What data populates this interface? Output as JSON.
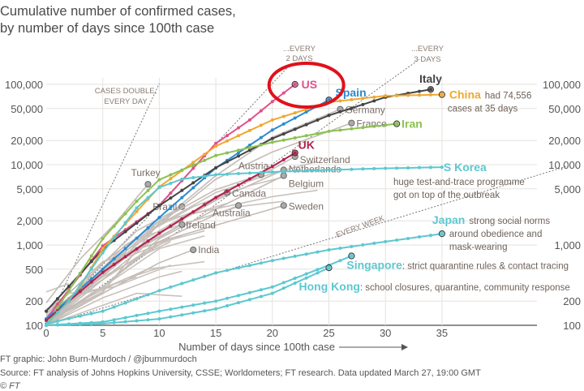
{
  "title_line1": "Cumulative number of confirmed cases,",
  "title_line2": "by number of days since 100th case",
  "footer": {
    "credit": "FT graphic: John Burn-Murdoch / @jburnmurdoch",
    "source": "Source: FT analysis of Johns Hopkins University, CSSE; Worldometers; FT research. Data updated March 27, 19:00 GMT",
    "copyright": "© FT"
  },
  "chart_data": {
    "type": "line",
    "title": "Cumulative number of confirmed cases, by number of days since 100th case",
    "xlabel": "Number of days since 100th case",
    "ylabel": "",
    "xlim": [
      0,
      35
    ],
    "ylim": [
      100,
      100000
    ],
    "yscale": "log",
    "grid": true,
    "x_ticks": [
      0,
      5,
      10,
      15,
      20,
      25,
      30,
      35
    ],
    "y_ticks": [
      100,
      200,
      500,
      1000,
      2000,
      5000,
      10000,
      20000,
      50000,
      100000
    ],
    "y_tick_labels": [
      "100",
      "200",
      "500",
      "1,000",
      "2,000",
      "5,000",
      "10,000",
      "20,000",
      "50,000",
      "100,000"
    ],
    "highlight_circle_on": "US",
    "reference_lines": [
      {
        "label_line1": "CASES DOUBLE,",
        "label_line2": "EVERY DAY",
        "doubling_days": 1,
        "end_day": 10
      },
      {
        "label_line1": "...EVERY",
        "label_line2": "2 DAYS",
        "doubling_days": 2,
        "end_day": 21.5
      },
      {
        "label_line1": "...EVERY",
        "label_line2": "3 DAYS",
        "doubling_days": 3,
        "end_day": 33
      },
      {
        "label_line1": "EVERY WEEK",
        "label_line2": "",
        "doubling_days": 7,
        "end_day": 46
      }
    ],
    "series": [
      {
        "name": "US",
        "color": "#e0508a",
        "bold": true,
        "highlight": true,
        "points": [
          [
            0,
            120
          ],
          [
            5,
            975
          ],
          [
            10,
            3100
          ],
          [
            15,
            18400
          ],
          [
            18,
            36000
          ],
          [
            20,
            61000
          ],
          [
            22,
            100000
          ]
        ]
      },
      {
        "name": "Spain",
        "color": "#2a8bd0",
        "bold": true,
        "highlight": true,
        "points": [
          [
            0,
            120
          ],
          [
            5,
            500
          ],
          [
            10,
            2200
          ],
          [
            15,
            9100
          ],
          [
            20,
            27000
          ],
          [
            25,
            64000
          ]
        ]
      },
      {
        "name": "Italy",
        "color": "#444444",
        "bold": true,
        "highlight": true,
        "points": [
          [
            0,
            150
          ],
          [
            5,
            888
          ],
          [
            10,
            3089
          ],
          [
            15,
            9172
          ],
          [
            20,
            21157
          ],
          [
            25,
            41035
          ],
          [
            30,
            69176
          ],
          [
            34,
            86498
          ]
        ]
      },
      {
        "name": "China",
        "color": "#f0a830",
        "bold": true,
        "highlight": true,
        "note": "had 74,556",
        "note2": "cases at 35 days",
        "points": [
          [
            0,
            100
          ],
          [
            3,
            300
          ],
          [
            5,
            900
          ],
          [
            10,
            5300
          ],
          [
            15,
            17000
          ],
          [
            20,
            36000
          ],
          [
            25,
            60000
          ],
          [
            30,
            72000
          ],
          [
            35,
            74556
          ]
        ]
      },
      {
        "name": "Iran",
        "color": "#8cc152",
        "bold": true,
        "highlight": true,
        "points": [
          [
            0,
            100
          ],
          [
            5,
            1200
          ],
          [
            8,
            3500
          ],
          [
            10,
            6500
          ],
          [
            15,
            13000
          ],
          [
            20,
            19000
          ],
          [
            25,
            26000
          ],
          [
            31,
            32300
          ]
        ]
      },
      {
        "name": "UK",
        "color": "#b3204f",
        "bold": true,
        "highlight": true,
        "points": [
          [
            0,
            115
          ],
          [
            5,
            456
          ],
          [
            10,
            1400
          ],
          [
            15,
            3900
          ],
          [
            20,
            9500
          ],
          [
            22,
            14000
          ]
        ]
      },
      {
        "name": "S Korea",
        "color": "#5cc8d0",
        "bold": true,
        "highlight": true,
        "note": "huge test-and-trace programme",
        "note2": "got on top of the outbreak",
        "points": [
          [
            0,
            104
          ],
          [
            2,
            200
          ],
          [
            5,
            800
          ],
          [
            8,
            2900
          ],
          [
            10,
            5200
          ],
          [
            12,
            6600
          ],
          [
            15,
            7500
          ],
          [
            20,
            8100
          ],
          [
            25,
            8600
          ],
          [
            30,
            9000
          ],
          [
            35,
            9300
          ]
        ]
      },
      {
        "name": "Japan",
        "color": "#5cc8d0",
        "bold": true,
        "highlight": true,
        "note": "strong social norms",
        "note2": "around obedience and",
        "note3": "mask-wearing",
        "points": [
          [
            0,
            105
          ],
          [
            5,
            150
          ],
          [
            10,
            270
          ],
          [
            15,
            450
          ],
          [
            20,
            640
          ],
          [
            25,
            870
          ],
          [
            30,
            1100
          ],
          [
            35,
            1380
          ]
        ]
      },
      {
        "name": "Singapore",
        "color": "#5cc8d0",
        "bold": true,
        "highlight": true,
        "note": ": strict quarantine rules & contact tracing",
        "points": [
          [
            0,
            100
          ],
          [
            5,
            110
          ],
          [
            10,
            150
          ],
          [
            15,
            200
          ],
          [
            20,
            300
          ],
          [
            25,
            560
          ],
          [
            27,
            730
          ]
        ]
      },
      {
        "name": "Hong Kong",
        "color": "#5cc8d0",
        "bold": true,
        "highlight": true,
        "note": ": school closures, quarantine, community response",
        "points": [
          [
            0,
            100
          ],
          [
            5,
            105
          ],
          [
            10,
            120
          ],
          [
            15,
            160
          ],
          [
            20,
            250
          ],
          [
            25,
            520
          ]
        ]
      },
      {
        "name": "Germany",
        "color": "#c4bcb6",
        "points": [
          [
            0,
            117
          ],
          [
            5,
            260
          ],
          [
            10,
            1900
          ],
          [
            15,
            7300
          ],
          [
            20,
            22000
          ],
          [
            26,
            49000
          ]
        ]
      },
      {
        "name": "France",
        "color": "#c4bcb6",
        "points": [
          [
            0,
            100
          ],
          [
            5,
            420
          ],
          [
            10,
            1800
          ],
          [
            15,
            6600
          ],
          [
            20,
            14400
          ],
          [
            27,
            33000
          ]
        ]
      },
      {
        "name": "Switzerland",
        "color": "#c4bcb6",
        "points": [
          [
            0,
            100
          ],
          [
            5,
            370
          ],
          [
            10,
            1360
          ],
          [
            15,
            4000
          ],
          [
            20,
            8800
          ],
          [
            22,
            12600
          ]
        ]
      },
      {
        "name": "Netherlands",
        "color": "#c4bcb6",
        "points": [
          [
            0,
            128
          ],
          [
            5,
            500
          ],
          [
            10,
            1400
          ],
          [
            15,
            3600
          ],
          [
            21,
            8600
          ]
        ]
      },
      {
        "name": "Belgium",
        "color": "#c4bcb6",
        "points": [
          [
            0,
            109
          ],
          [
            5,
            300
          ],
          [
            10,
            1200
          ],
          [
            15,
            2800
          ],
          [
            21,
            7300
          ]
        ]
      },
      {
        "name": "Sweden",
        "color": "#c4bcb6",
        "points": [
          [
            0,
            137
          ],
          [
            5,
            620
          ],
          [
            10,
            1100
          ],
          [
            15,
            1760
          ],
          [
            21,
            3100
          ]
        ]
      },
      {
        "name": "Turkey",
        "color": "#c4bcb6",
        "points": [
          [
            0,
            190
          ],
          [
            3,
            670
          ],
          [
            6,
            1800
          ],
          [
            9,
            5700
          ]
        ]
      },
      {
        "name": "Brazil",
        "color": "#c4bcb6",
        "points": [
          [
            0,
            151
          ],
          [
            4,
            430
          ],
          [
            8,
            1500
          ],
          [
            12,
            3000
          ]
        ]
      },
      {
        "name": "Canada",
        "color": "#c4bcb6",
        "points": [
          [
            0,
            110
          ],
          [
            5,
            440
          ],
          [
            10,
            1400
          ],
          [
            16,
            4500
          ]
        ]
      },
      {
        "name": "Austria",
        "color": "#c4bcb6",
        "points": [
          [
            0,
            100
          ],
          [
            5,
            600
          ],
          [
            10,
            2000
          ],
          [
            15,
            4900
          ],
          [
            19,
            7500
          ]
        ]
      },
      {
        "name": "Australia",
        "color": "#c4bcb6",
        "points": [
          [
            0,
            100
          ],
          [
            5,
            300
          ],
          [
            10,
            1100
          ],
          [
            15,
            2400
          ],
          [
            17,
            3100
          ]
        ]
      },
      {
        "name": "Ireland",
        "color": "#c4bcb6",
        "points": [
          [
            0,
            129
          ],
          [
            4,
            360
          ],
          [
            8,
            900
          ],
          [
            12,
            1800
          ]
        ]
      },
      {
        "name": "India",
        "color": "#c4bcb6",
        "points": [
          [
            0,
            110
          ],
          [
            5,
            250
          ],
          [
            10,
            600
          ],
          [
            13,
            870
          ]
        ]
      }
    ],
    "other_series": [
      {
        "points": [
          [
            0,
            100
          ],
          [
            5,
            500
          ],
          [
            10,
            1800
          ],
          [
            13,
            2600
          ]
        ]
      },
      {
        "points": [
          [
            0,
            100
          ],
          [
            6,
            600
          ],
          [
            12,
            1800
          ]
        ]
      },
      {
        "points": [
          [
            0,
            110
          ],
          [
            8,
            900
          ],
          [
            14,
            1500
          ]
        ]
      },
      {
        "points": [
          [
            0,
            100
          ],
          [
            5,
            300
          ],
          [
            10,
            900
          ],
          [
            14,
            1300
          ]
        ]
      },
      {
        "points": [
          [
            0,
            130
          ],
          [
            7,
            700
          ],
          [
            12,
            1300
          ]
        ]
      },
      {
        "points": [
          [
            0,
            100
          ],
          [
            4,
            250
          ],
          [
            9,
            500
          ],
          [
            14,
            620
          ]
        ]
      },
      {
        "points": [
          [
            0,
            100
          ],
          [
            5,
            220
          ],
          [
            10,
            400
          ],
          [
            12,
            470
          ]
        ]
      },
      {
        "points": [
          [
            0,
            160
          ],
          [
            3,
            240
          ],
          [
            8,
            400
          ]
        ]
      },
      {
        "points": [
          [
            0,
            100
          ],
          [
            6,
            300
          ],
          [
            11,
            560
          ]
        ]
      },
      {
        "points": [
          [
            0,
            120
          ],
          [
            5,
            400
          ],
          [
            9,
            800
          ],
          [
            11,
            1100
          ]
        ]
      },
      {
        "points": [
          [
            0,
            100
          ],
          [
            8,
            1200
          ],
          [
            17,
            3000
          ],
          [
            21,
            3500
          ]
        ]
      },
      {
        "points": [
          [
            0,
            100
          ],
          [
            10,
            2000
          ],
          [
            20,
            4000
          ],
          [
            24,
            4800
          ]
        ]
      },
      {
        "points": [
          [
            0,
            100
          ],
          [
            8,
            250
          ],
          [
            12,
            230
          ]
        ]
      },
      {
        "points": [
          [
            0,
            140
          ],
          [
            2,
            250
          ],
          [
            6,
            300
          ]
        ]
      },
      {
        "points": [
          [
            0,
            260
          ],
          [
            2,
            330
          ]
        ]
      },
      {
        "points": [
          [
            0,
            100
          ],
          [
            7,
            1000
          ],
          [
            13,
            3000
          ],
          [
            18,
            5500
          ],
          [
            21,
            7000
          ]
        ]
      },
      {
        "points": [
          [
            0,
            100
          ],
          [
            9,
            1500
          ],
          [
            15,
            4500
          ],
          [
            20,
            7800
          ],
          [
            24,
            11000
          ]
        ]
      },
      {
        "points": [
          [
            0,
            100
          ],
          [
            6,
            700
          ],
          [
            12,
            2200
          ],
          [
            16,
            3300
          ]
        ]
      },
      {
        "points": [
          [
            0,
            110
          ],
          [
            4,
            300
          ],
          [
            8,
            700
          ],
          [
            10,
            1000
          ]
        ]
      },
      {
        "points": [
          [
            0,
            100
          ],
          [
            3,
            200
          ],
          [
            7,
            380
          ],
          [
            10,
            520
          ]
        ]
      }
    ]
  }
}
